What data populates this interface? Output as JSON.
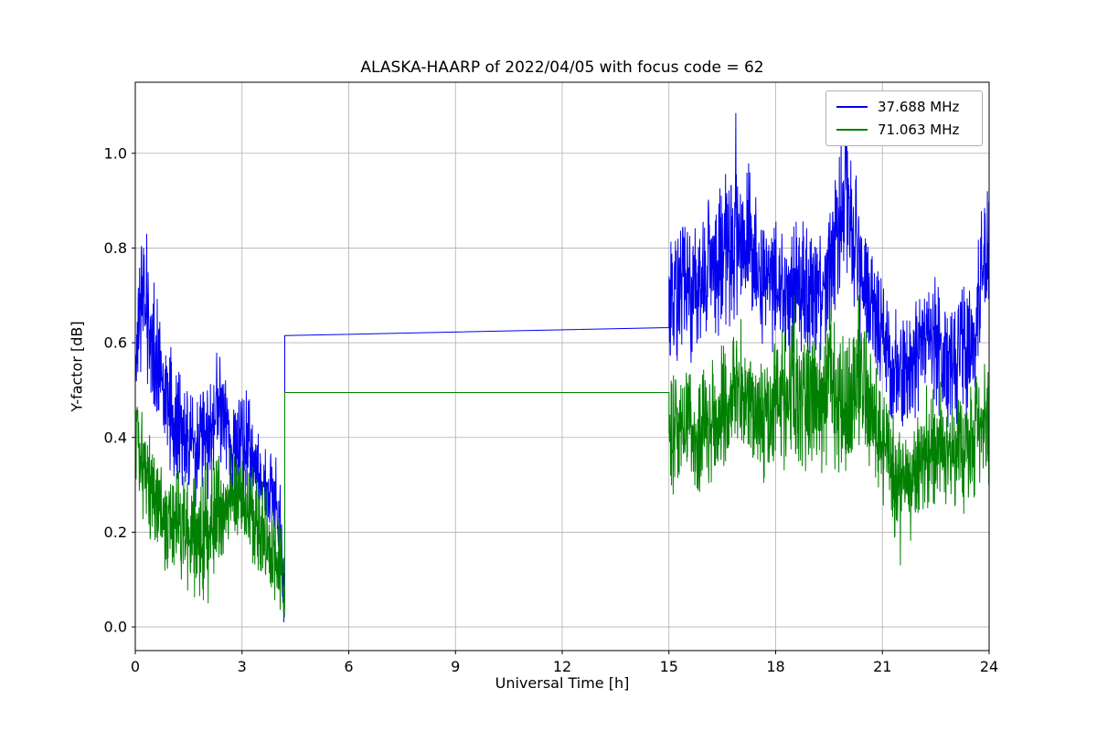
{
  "chart_data": {
    "type": "line",
    "title": "ALASKA-HAARP of 2022/04/05 with focus code = 62",
    "xlabel": "Universal Time [h]",
    "ylabel": "Y-factor [dB]",
    "xlim": [
      0,
      24
    ],
    "ylim": [
      -0.05,
      1.15
    ],
    "xticks": [
      0,
      3,
      6,
      9,
      12,
      15,
      18,
      21,
      24
    ],
    "xtick_labels": [
      "0",
      "3",
      "6",
      "9",
      "12",
      "15",
      "18",
      "21",
      "24"
    ],
    "yticks": [
      0.0,
      0.2,
      0.4,
      0.6,
      0.8,
      1.0
    ],
    "ytick_labels": [
      "0.0",
      "0.2",
      "0.4",
      "0.6",
      "0.8",
      "1.0"
    ],
    "grid": true,
    "grid_color": "#b0b0b0",
    "legend_position": "upper right",
    "series": [
      {
        "name": "37.688 MHz",
        "color": "#0000ee",
        "segments": [
          {
            "type": "noisy",
            "x0": 0,
            "x1": 4.2,
            "step": 0.008,
            "envelope": [
              [
                0,
                0.56,
                0.1
              ],
              [
                0.25,
                0.7,
                0.11
              ],
              [
                0.45,
                0.62,
                0.1
              ],
              [
                0.8,
                0.5,
                0.09
              ],
              [
                1.2,
                0.42,
                0.08
              ],
              [
                1.6,
                0.38,
                0.08
              ],
              [
                2.0,
                0.37,
                0.08
              ],
              [
                2.35,
                0.48,
                0.08
              ],
              [
                2.7,
                0.38,
                0.07
              ],
              [
                3.0,
                0.4,
                0.08
              ],
              [
                3.3,
                0.36,
                0.07
              ],
              [
                3.6,
                0.3,
                0.06
              ],
              [
                3.95,
                0.27,
                0.06
              ],
              [
                4.1,
                0.18,
                0.09
              ],
              [
                4.2,
                0.08,
                0.06
              ]
            ],
            "spikes": [
              [
                0.32,
                0.83
              ],
              [
                2.38,
                0.57
              ],
              [
                4.18,
                0.01
              ]
            ]
          },
          {
            "type": "flat",
            "x0": 4.2,
            "x1": 15,
            "y0": 0.615,
            "y1": 0.632
          },
          {
            "type": "noisy",
            "x0": 15,
            "x1": 24,
            "step": 0.008,
            "envelope": [
              [
                15,
                0.68,
                0.1
              ],
              [
                15.4,
                0.73,
                0.1
              ],
              [
                15.8,
                0.72,
                0.1
              ],
              [
                16.2,
                0.76,
                0.1
              ],
              [
                16.6,
                0.8,
                0.11
              ],
              [
                16.95,
                0.83,
                0.12
              ],
              [
                17.3,
                0.8,
                0.11
              ],
              [
                17.7,
                0.74,
                0.1
              ],
              [
                18.1,
                0.71,
                0.1
              ],
              [
                18.5,
                0.72,
                0.1
              ],
              [
                18.9,
                0.71,
                0.1
              ],
              [
                19.3,
                0.7,
                0.1
              ],
              [
                19.7,
                0.8,
                0.12
              ],
              [
                19.95,
                0.93,
                0.12
              ],
              [
                20.15,
                0.85,
                0.11
              ],
              [
                20.45,
                0.72,
                0.1
              ],
              [
                20.8,
                0.66,
                0.09
              ],
              [
                21.2,
                0.56,
                0.08
              ],
              [
                21.5,
                0.52,
                0.08
              ],
              [
                21.9,
                0.58,
                0.09
              ],
              [
                22.3,
                0.62,
                0.09
              ],
              [
                22.7,
                0.56,
                0.09
              ],
              [
                23.1,
                0.55,
                0.09
              ],
              [
                23.5,
                0.62,
                0.1
              ],
              [
                23.8,
                0.72,
                0.11
              ],
              [
                24,
                0.8,
                0.1
              ]
            ],
            "spikes": [
              [
                16.88,
                1.085
              ],
              [
                19.97,
                1.06
              ],
              [
                21.3,
                0.45
              ],
              [
                23.95,
                0.92
              ]
            ]
          }
        ]
      },
      {
        "name": "71.063 MHz",
        "color": "#008000",
        "segments": [
          {
            "type": "noisy",
            "x0": 0,
            "x1": 4.2,
            "step": 0.008,
            "envelope": [
              [
                0,
                0.4,
                0.08
              ],
              [
                0.3,
                0.32,
                0.08
              ],
              [
                0.7,
                0.26,
                0.08
              ],
              [
                1.1,
                0.22,
                0.08
              ],
              [
                1.5,
                0.19,
                0.08
              ],
              [
                1.9,
                0.2,
                0.09
              ],
              [
                2.3,
                0.25,
                0.08
              ],
              [
                2.7,
                0.27,
                0.07
              ],
              [
                3.05,
                0.28,
                0.07
              ],
              [
                3.4,
                0.22,
                0.08
              ],
              [
                3.75,
                0.18,
                0.08
              ],
              [
                4.05,
                0.14,
                0.08
              ],
              [
                4.2,
                0.09,
                0.07
              ]
            ],
            "spikes": [
              [
                0.05,
                0.46
              ],
              [
                2.05,
                0.05
              ],
              [
                4.19,
                0.02
              ]
            ]
          },
          {
            "type": "flat",
            "x0": 4.2,
            "x1": 15,
            "y0": 0.495,
            "y1": 0.495
          },
          {
            "type": "noisy",
            "x0": 15,
            "x1": 24,
            "step": 0.008,
            "envelope": [
              [
                15,
                0.4,
                0.09
              ],
              [
                15.4,
                0.43,
                0.09
              ],
              [
                15.8,
                0.4,
                0.09
              ],
              [
                16.2,
                0.43,
                0.1
              ],
              [
                16.6,
                0.46,
                0.1
              ],
              [
                17.0,
                0.5,
                0.1
              ],
              [
                17.4,
                0.44,
                0.09
              ],
              [
                17.8,
                0.45,
                0.09
              ],
              [
                18.2,
                0.48,
                0.1
              ],
              [
                18.55,
                0.52,
                0.11
              ],
              [
                18.9,
                0.46,
                0.1
              ],
              [
                19.3,
                0.48,
                0.1
              ],
              [
                19.6,
                0.5,
                0.11
              ],
              [
                20.0,
                0.46,
                0.1
              ],
              [
                20.35,
                0.52,
                0.11
              ],
              [
                20.7,
                0.45,
                0.09
              ],
              [
                21.1,
                0.36,
                0.09
              ],
              [
                21.45,
                0.28,
                0.09
              ],
              [
                21.8,
                0.3,
                0.09
              ],
              [
                22.2,
                0.36,
                0.09
              ],
              [
                22.6,
                0.38,
                0.09
              ],
              [
                23.0,
                0.35,
                0.09
              ],
              [
                23.4,
                0.39,
                0.09
              ],
              [
                23.7,
                0.41,
                0.09
              ],
              [
                24,
                0.42,
                0.09
              ]
            ],
            "spikes": [
              [
                17.02,
                0.65
              ],
              [
                18.52,
                0.7
              ],
              [
                19.55,
                0.67
              ],
              [
                20.33,
                0.7
              ],
              [
                21.5,
                0.13
              ]
            ]
          }
        ]
      }
    ]
  }
}
